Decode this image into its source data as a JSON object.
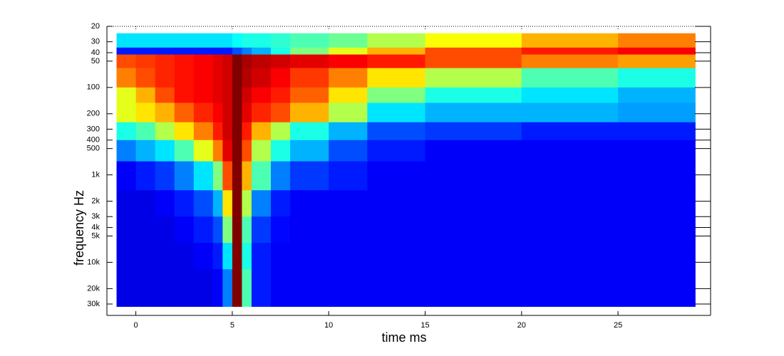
{
  "chart_data": {
    "type": "heatmap",
    "xlabel": "time   ms",
    "ylabel": "frequency   Hz",
    "colormap": "jet",
    "xlim": [
      -1.5,
      29.8
    ],
    "ylim": [
      20,
      40500
    ],
    "yscale": "log",
    "xticks": [
      0,
      5,
      10,
      15,
      20,
      25
    ],
    "yticks": [
      20,
      30,
      40,
      50,
      100,
      200,
      300,
      400,
      500,
      {
        "value": 1000,
        "label": "1k"
      },
      {
        "value": 2000,
        "label": "2k"
      },
      {
        "value": 3000,
        "label": "3k"
      },
      {
        "value": 4000,
        "label": "4k"
      },
      {
        "value": 5000,
        "label": "5k"
      },
      {
        "value": 10000,
        "label": "10k"
      },
      {
        "value": 20000,
        "label": "20k"
      },
      {
        "value": 30000,
        "label": "30k"
      }
    ],
    "x_edges": [
      -1,
      0,
      1,
      2,
      3,
      4,
      4.5,
      5,
      5.5,
      6,
      7,
      8,
      10,
      12,
      15,
      20,
      25,
      29
    ],
    "y_edges": [
      24,
      35,
      42,
      60,
      100,
      150,
      250,
      400,
      700,
      1500,
      3000,
      6000,
      12000,
      32000
    ],
    "z": [
      [
        35,
        35,
        35,
        35,
        35,
        35,
        35,
        38,
        40,
        40,
        42,
        45,
        48,
        55,
        62,
        70,
        75
      ],
      [
        15,
        15,
        15,
        15,
        15,
        15,
        15,
        20,
        25,
        30,
        40,
        50,
        60,
        70,
        80,
        85,
        88
      ],
      [
        80,
        82,
        84,
        86,
        88,
        90,
        92,
        100,
        96,
        94,
        92,
        90,
        88,
        85,
        80,
        75,
        72
      ],
      [
        75,
        80,
        84,
        86,
        88,
        90,
        92,
        100,
        95,
        92,
        88,
        82,
        75,
        65,
        55,
        45,
        40
      ],
      [
        60,
        70,
        80,
        86,
        88,
        90,
        92,
        100,
        92,
        88,
        85,
        78,
        65,
        50,
        40,
        35,
        30
      ],
      [
        60,
        65,
        70,
        78,
        84,
        88,
        92,
        100,
        90,
        84,
        80,
        70,
        55,
        35,
        30,
        30,
        28
      ],
      [
        40,
        45,
        55,
        65,
        75,
        85,
        92,
        100,
        85,
        70,
        55,
        40,
        30,
        20,
        18,
        15,
        15
      ],
      [
        25,
        30,
        35,
        45,
        60,
        75,
        90,
        100,
        80,
        55,
        40,
        30,
        20,
        15,
        12,
        12,
        12
      ],
      [
        12,
        15,
        18,
        25,
        35,
        50,
        80,
        100,
        70,
        45,
        25,
        18,
        15,
        12,
        12,
        12,
        12
      ],
      [
        10,
        10,
        12,
        15,
        20,
        30,
        65,
        100,
        55,
        25,
        15,
        12,
        12,
        12,
        12,
        12,
        12
      ],
      [
        10,
        10,
        10,
        12,
        15,
        20,
        50,
        100,
        45,
        18,
        13,
        12,
        12,
        12,
        12,
        12,
        12
      ],
      [
        10,
        10,
        10,
        10,
        12,
        15,
        35,
        100,
        40,
        15,
        12,
        12,
        12,
        12,
        12,
        12,
        12
      ],
      [
        10,
        10,
        10,
        10,
        10,
        12,
        25,
        100,
        45,
        15,
        12,
        12,
        12,
        12,
        12,
        12,
        12
      ]
    ]
  }
}
